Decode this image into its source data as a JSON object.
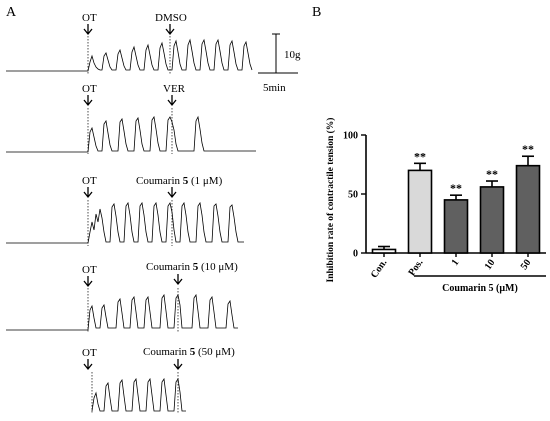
{
  "panel_a": {
    "label": "A",
    "scale_tension": "10g",
    "scale_time": "5min",
    "traces": [
      {
        "mark1": "OT",
        "mark2": "DMSO",
        "pre": "",
        "bold": "",
        "post": ""
      },
      {
        "mark1": "OT",
        "mark2": "VER",
        "pre": "",
        "bold": "",
        "post": ""
      },
      {
        "mark1": "OT",
        "mark2": "",
        "pre": "Coumarin ",
        "bold": "5",
        "post": " (1 μM)"
      },
      {
        "mark1": "OT",
        "mark2": "",
        "pre": "Coumarin ",
        "bold": "5",
        "post": " (10 μM)"
      },
      {
        "mark1": "OT",
        "mark2": "",
        "pre": "Coumarin ",
        "bold": "5",
        "post": " (50 μM)"
      }
    ]
  },
  "panel_b": {
    "label": "B",
    "chart_data": {
      "type": "bar",
      "categories": [
        "Con.",
        "Pos.",
        "1",
        "10",
        "50"
      ],
      "values": [
        3,
        70,
        45,
        56,
        74
      ],
      "errors": [
        2.5,
        6,
        4,
        5,
        8
      ],
      "significance": [
        "",
        "**",
        "**",
        "**",
        "**"
      ],
      "colors": [
        "#ffffff",
        "#d9d9d9",
        "#606060",
        "#606060",
        "#606060"
      ],
      "ylabel": "Inhibition rate of contractile tension (%)",
      "yticks": [
        0,
        50,
        100
      ],
      "ylim": [
        0,
        100
      ],
      "group_label": "Coumarin 5 (μM)"
    }
  }
}
